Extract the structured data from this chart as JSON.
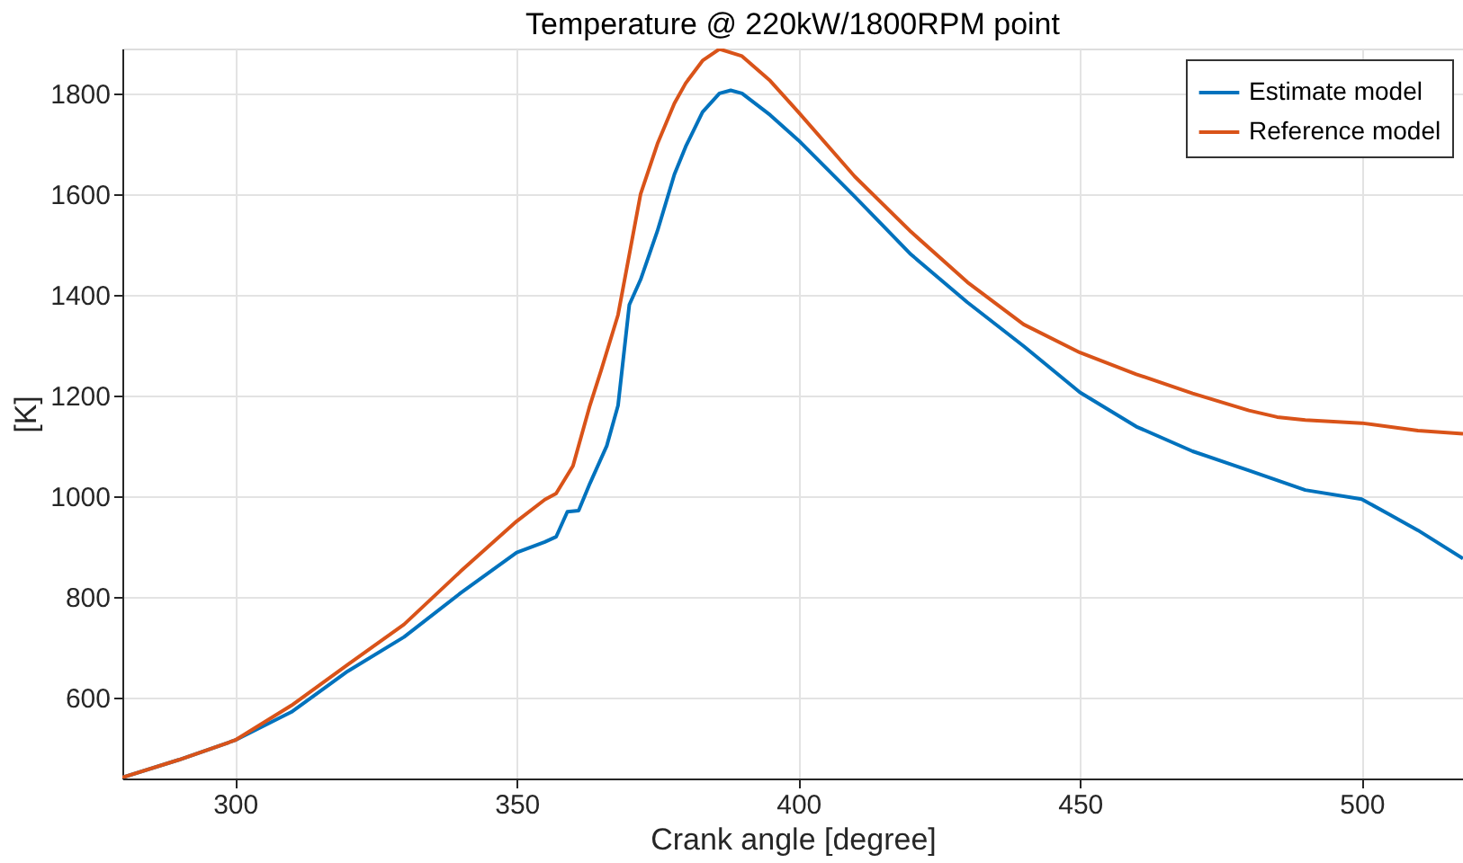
{
  "chart_data": {
    "type": "line",
    "title": "Temperature @ 220kW/1800RPM point",
    "xlabel": "Crank angle [degree]",
    "ylabel": "[K]",
    "xlim": [
      280,
      518
    ],
    "ylim": [
      439,
      1889
    ],
    "xticks": [
      300,
      350,
      400,
      450,
      500
    ],
    "yticks": [
      600,
      800,
      1000,
      1200,
      1400,
      1600,
      1800
    ],
    "grid": true,
    "legend": "top right",
    "line_style": "solid",
    "marker": "none",
    "series": [
      {
        "name": "Estimate model",
        "color": "#0072bd",
        "x": [
          280,
          290,
          300,
          310,
          320,
          330,
          340,
          350,
          355,
          357,
          359,
          361,
          363,
          366,
          368,
          370,
          372,
          375,
          378,
          380,
          383,
          386,
          388,
          390,
          395,
          400,
          410,
          420,
          430,
          440,
          450,
          460,
          470,
          480,
          490,
          500,
          505,
          510,
          518
        ],
        "values": [
          441,
          476,
          515,
          571,
          652,
          720,
          807,
          888,
          909,
          919,
          969,
          971,
          1025,
          1100,
          1180,
          1380,
          1430,
          1527,
          1639,
          1694,
          1763,
          1800,
          1806,
          1800,
          1757,
          1707,
          1595,
          1480,
          1385,
          1298,
          1206,
          1138,
          1089,
          1051,
          1012,
          994,
          963,
          932,
          876
        ]
      },
      {
        "name": "Reference model",
        "color": "#d95319",
        "x": [
          280,
          290,
          300,
          310,
          320,
          330,
          340,
          350,
          355,
          357,
          360,
          363,
          365,
          368,
          370,
          372,
          375,
          378,
          380,
          383,
          386,
          390,
          395,
          400,
          410,
          420,
          430,
          440,
          450,
          460,
          470,
          480,
          485,
          490,
          500,
          510,
          518
        ],
        "values": [
          441,
          476,
          515,
          584,
          665,
          745,
          850,
          950,
          993,
          1005,
          1060,
          1180,
          1250,
          1360,
          1480,
          1600,
          1700,
          1780,
          1820,
          1865,
          1888,
          1874,
          1825,
          1763,
          1635,
          1525,
          1425,
          1341,
          1285,
          1242,
          1204,
          1170,
          1157,
          1151,
          1145,
          1130,
          1124
        ]
      }
    ]
  }
}
